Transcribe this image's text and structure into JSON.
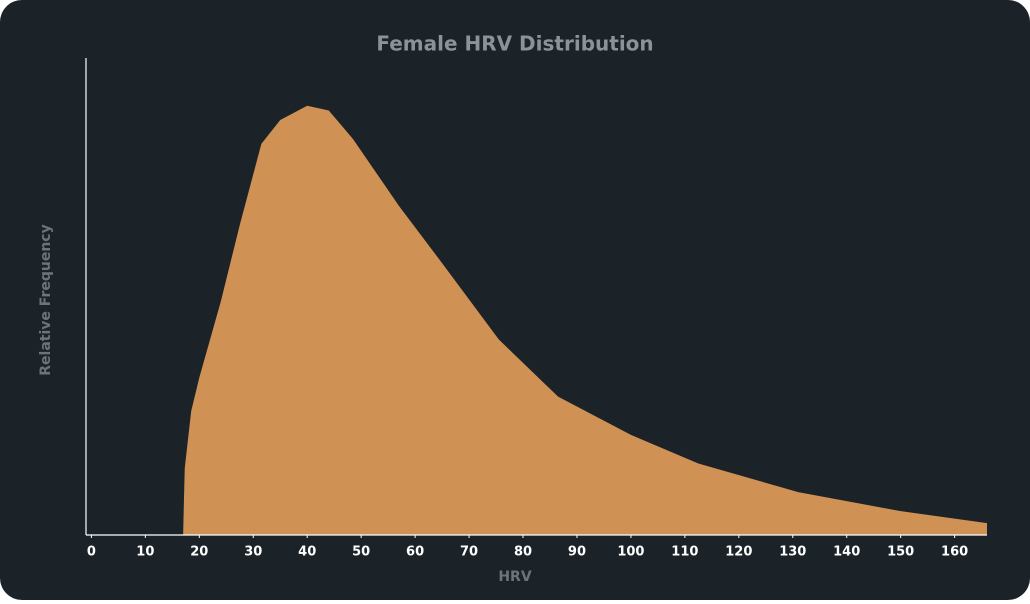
{
  "chart_data": {
    "type": "area",
    "title": "Female HRV Distribution",
    "x_label": "HRV",
    "y_label": "Relative Frequency",
    "x": [
      17,
      17.3,
      18.5,
      20,
      24,
      27.5,
      31.5,
      35,
      40,
      44,
      48.5,
      57,
      65,
      75.5,
      86.5,
      100,
      112.5,
      131,
      150,
      166
    ],
    "values": [
      0,
      14,
      26,
      33,
      49,
      65,
      82,
      87,
      90,
      89,
      83,
      69,
      57,
      41,
      29,
      21,
      15,
      9,
      5,
      2.5
    ],
    "color": "#cf9154",
    "xlim": [
      -1,
      166
    ],
    "xticks": [
      0,
      10,
      20,
      30,
      40,
      50,
      60,
      70,
      80,
      90,
      100,
      110,
      120,
      130,
      140,
      150,
      160
    ],
    "ylim": [
      0,
      100
    ]
  }
}
